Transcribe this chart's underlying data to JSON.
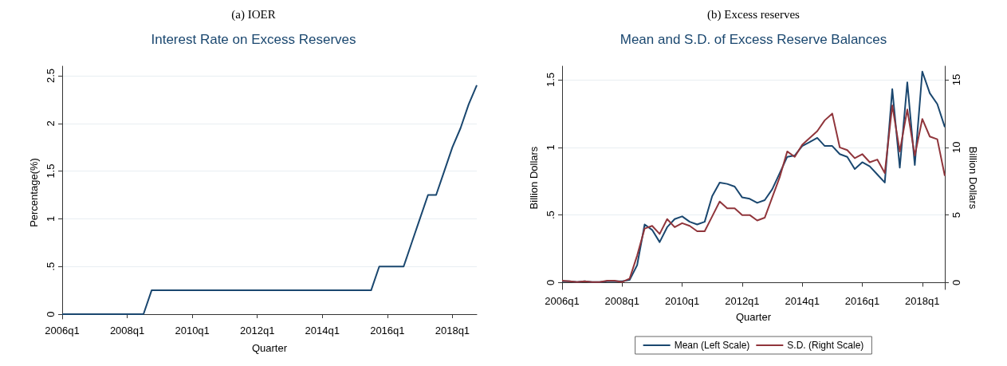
{
  "chart_data": [
    {
      "type": "line",
      "title": "Interest Rate on Excess Reserves",
      "annotations": [
        "(a) IOER"
      ],
      "xlabel": "Quarter",
      "ylabel": "Percentage(%)",
      "categories": [
        "2006q1",
        null,
        null,
        null,
        null,
        null,
        null,
        null,
        "2008q1",
        null,
        null,
        null,
        null,
        null,
        null,
        null,
        "2010q1",
        null,
        null,
        null,
        null,
        null,
        null,
        null,
        "2012q1",
        null,
        null,
        null,
        null,
        null,
        null,
        null,
        "2014q1",
        null,
        null,
        null,
        null,
        null,
        null,
        null,
        "2016q1",
        null,
        null,
        null,
        null,
        null,
        null,
        null,
        "2018q1",
        null,
        null,
        null
      ],
      "series": [
        {
          "color": "#1a476f",
          "values": [
            0,
            0,
            0,
            0,
            0,
            0,
            0,
            0,
            0,
            0,
            0,
            0.25,
            0.25,
            0.25,
            0.25,
            0.25,
            0.25,
            0.25,
            0.25,
            0.25,
            0.25,
            0.25,
            0.25,
            0.25,
            0.25,
            0.25,
            0.25,
            0.25,
            0.25,
            0.25,
            0.25,
            0.25,
            0.25,
            0.25,
            0.25,
            0.25,
            0.25,
            0.25,
            0.25,
            0.5,
            0.5,
            0.5,
            0.5,
            0.75,
            1.0,
            1.25,
            1.25,
            1.5,
            1.75,
            1.95,
            2.2,
            2.4
          ]
        }
      ],
      "ylim": [
        -0.05,
        2.6
      ],
      "yticks": [
        0,
        {
          "value": 0.5,
          "label": ".5"
        },
        1,
        1.5,
        2,
        2.5
      ],
      "grid": "y",
      "legend": false,
      "marker": "none",
      "line_style": "solid"
    },
    {
      "type": "line",
      "title": "Mean and S.D. of Excess Reserve Balances",
      "annotations": [
        "(b) Excess reserves"
      ],
      "xlabel": "Quarter",
      "ylabel": "Billion Dollars",
      "y2label": "Billion Dollars",
      "categories": [
        "2006q1",
        null,
        null,
        null,
        null,
        null,
        null,
        null,
        "2008q1",
        null,
        null,
        null,
        null,
        null,
        null,
        null,
        "2010q1",
        null,
        null,
        null,
        null,
        null,
        null,
        null,
        "2012q1",
        null,
        null,
        null,
        null,
        null,
        null,
        null,
        "2014q1",
        null,
        null,
        null,
        null,
        null,
        null,
        null,
        "2016q1",
        null,
        null,
        null,
        null,
        null,
        null,
        null,
        "2018q1",
        null,
        null,
        null
      ],
      "series": [
        {
          "name": "Mean (Left Scale)",
          "color": "#1a476f",
          "values": [
            0.01,
            0.01,
            0.005,
            0.01,
            0.005,
            0.005,
            0.01,
            0.01,
            0.01,
            0.02,
            0.13,
            0.43,
            0.39,
            0.3,
            0.41,
            0.47,
            0.49,
            0.45,
            0.43,
            0.45,
            0.64,
            0.74,
            0.73,
            0.71,
            0.63,
            0.62,
            0.59,
            0.61,
            0.69,
            0.81,
            0.93,
            0.94,
            1.01,
            1.04,
            1.07,
            1.01,
            1.01,
            0.95,
            0.93,
            0.84,
            0.89,
            0.86,
            0.8,
            0.74,
            1.43,
            0.85,
            1.48,
            0.87,
            1.56,
            1.4,
            1.32,
            1.15
          ]
        },
        {
          "name": "S.D. (Right Scale)",
          "color": "#90353b",
          "axis": "y2",
          "values": [
            0.15,
            0.1,
            0.05,
            0.1,
            0.05,
            0.05,
            0.15,
            0.15,
            0.05,
            0.3,
            2.0,
            4.0,
            4.2,
            3.6,
            4.7,
            4.1,
            4.4,
            4.2,
            3.8,
            3.8,
            4.9,
            6.0,
            5.5,
            5.5,
            5.0,
            5.0,
            4.6,
            4.8,
            6.3,
            7.8,
            9.7,
            9.3,
            10.2,
            10.7,
            11.2,
            12.0,
            12.5,
            10.0,
            9.8,
            9.2,
            9.5,
            8.9,
            9.1,
            8.1,
            13.1,
            9.7,
            12.8,
            9.4,
            12.1,
            10.8,
            10.6,
            7.9
          ]
        }
      ],
      "ylim": [
        -0.05,
        1.6
      ],
      "yticks": [
        0,
        {
          "value": 0.5,
          "label": ".5"
        },
        1,
        1.5
      ],
      "y2lim": [
        -0.5,
        16
      ],
      "y2ticks": [
        0,
        5,
        10,
        15
      ],
      "grid": "y",
      "legend": "bottom",
      "marker": "none",
      "line_style": "solid"
    }
  ]
}
